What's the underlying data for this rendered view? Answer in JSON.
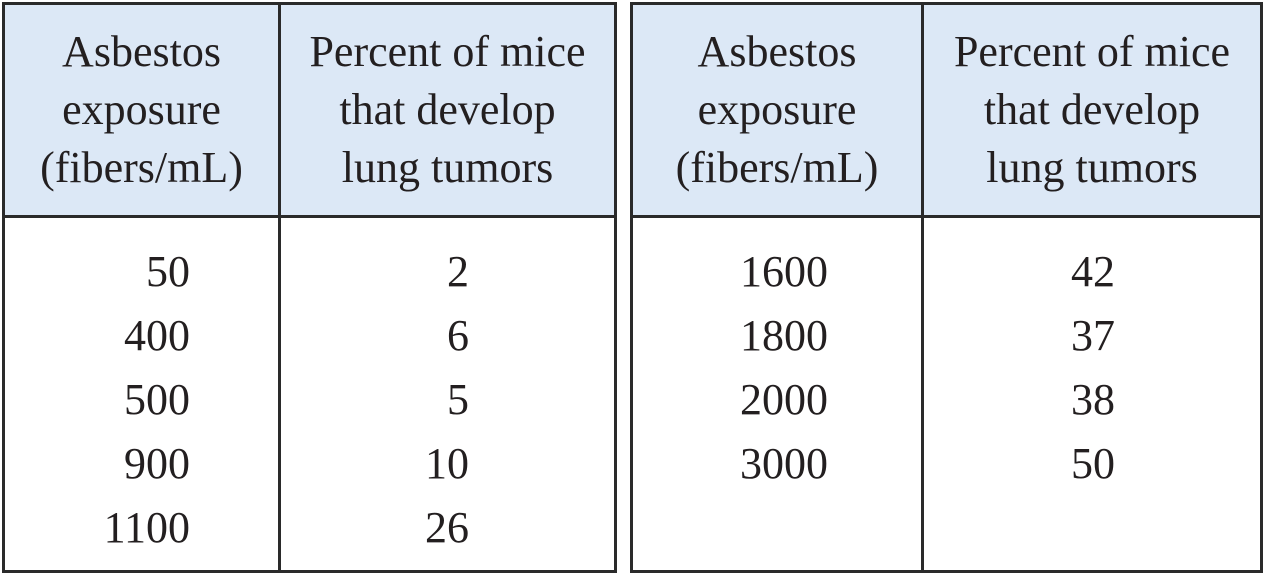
{
  "table": {
    "headers": [
      [
        "Asbestos",
        "exposure",
        "(fibers/mL)"
      ],
      [
        "Percent of mice",
        "that develop",
        "lung tumors"
      ],
      [
        "Asbestos",
        "exposure",
        "(fibers/mL)"
      ],
      [
        "Percent of mice",
        "that develop",
        "lung tumors"
      ]
    ],
    "left_rows": [
      {
        "exposure": "50",
        "percent": "2"
      },
      {
        "exposure": "400",
        "percent": "6"
      },
      {
        "exposure": "500",
        "percent": "5"
      },
      {
        "exposure": "900",
        "percent": "10"
      },
      {
        "exposure": "1100",
        "percent": "26"
      }
    ],
    "right_rows": [
      {
        "exposure": "1600",
        "percent": "42"
      },
      {
        "exposure": "1800",
        "percent": "37"
      },
      {
        "exposure": "2000",
        "percent": "38"
      },
      {
        "exposure": "3000",
        "percent": "50"
      }
    ],
    "header_bg": "#dce8f6",
    "border_color": "#2a2a2a"
  }
}
